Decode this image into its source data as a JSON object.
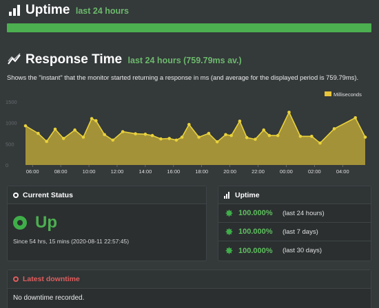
{
  "uptime_header": {
    "title": "Uptime",
    "subtitle": "last 24 hours"
  },
  "response_header": {
    "title": "Response Time",
    "subtitle": "last 24 hours (759.79ms av.)"
  },
  "response_description": "Shows the \"instant\" that the monitor started returning a response in ms (and average for the displayed period is 759.79ms).",
  "colors": {
    "accent_green": "#4caf50",
    "chart_fill": "#b8a23a",
    "chart_line": "#e9d23a",
    "danger": "#e05d5d"
  },
  "chart_data": {
    "type": "area",
    "legend": "Milliseconds",
    "legend_position": "top-right",
    "grid": false,
    "ylim": [
      0,
      1500
    ],
    "yticks": [
      "0",
      "500",
      "1000",
      "1500"
    ],
    "xtick_labels": [
      "06:00",
      "08:00",
      "10:00",
      "12:00",
      "14:00",
      "16:00",
      "18:00",
      "20:00",
      "22:00",
      "00:00",
      "02:00",
      "04:00"
    ],
    "x_hours": [
      5.5,
      6.4,
      7.0,
      7.6,
      8.2,
      9.0,
      9.6,
      10.2,
      10.5,
      11.1,
      11.7,
      12.4,
      13.3,
      14.0,
      14.5,
      15.1,
      15.7,
      16.2,
      16.6,
      17.1,
      17.8,
      18.5,
      19.1,
      19.7,
      20.1,
      20.7,
      21.2,
      21.8,
      22.4,
      22.8,
      23.4,
      24.2,
      25.0,
      25.8,
      26.4,
      27.4,
      28.9,
      29.6
    ],
    "values": [
      930,
      750,
      560,
      850,
      630,
      830,
      660,
      1100,
      1050,
      720,
      590,
      790,
      740,
      730,
      700,
      620,
      630,
      590,
      660,
      960,
      660,
      750,
      550,
      720,
      700,
      1040,
      650,
      610,
      830,
      700,
      700,
      1250,
      680,
      680,
      520,
      860,
      1120,
      660
    ]
  },
  "current_status": {
    "heading": "Current Status",
    "state": "Up",
    "since": "Since 54 hrs, 15 mins (2020-08-11 22:57:45)"
  },
  "uptime_panel": {
    "heading": "Uptime",
    "rows": [
      {
        "pct": "100.000%",
        "label": "(last 24 hours)"
      },
      {
        "pct": "100.000%",
        "label": "(last 7 days)"
      },
      {
        "pct": "100.000%",
        "label": "(last 30 days)"
      }
    ]
  },
  "latest_downtime": {
    "heading": "Latest downtime",
    "message": "No downtime recorded."
  }
}
